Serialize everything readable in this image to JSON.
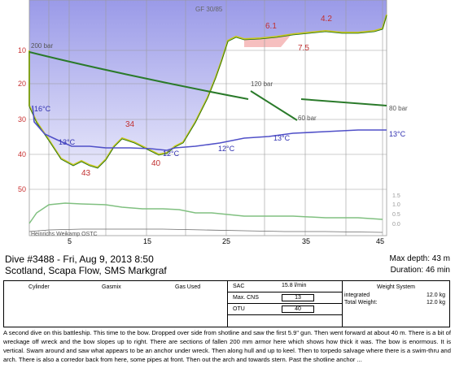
{
  "profile": {
    "watermark": "GF 30/85",
    "depth_ticks": [
      "10",
      "20",
      "30",
      "40",
      "50"
    ],
    "time_ticks": [
      "5",
      "15",
      "25",
      "35",
      "45"
    ],
    "pressure_labels": [
      "200 bar",
      "120 bar",
      "60 bar",
      "80 bar"
    ],
    "temperature_labels": [
      "16°C",
      "13°C",
      "12°C",
      "12°C",
      "13°C",
      "13°C"
    ],
    "depth_labels": [
      "43",
      "34",
      "40",
      "6.1",
      "4.2",
      "7.5"
    ],
    "right_scale": [
      "1.5",
      "1.0",
      "0.5",
      "0.0"
    ],
    "credit": "Heinrichs Weikamp OSTC",
    "colors": {
      "profile_fill": "#b8b8ee",
      "profile_line": "#c8c820",
      "tank": "#2a7a2a",
      "temp": "#5050c8",
      "ceiling": "#f4b0b0",
      "ppo2": "#80c080"
    }
  },
  "header": {
    "title": "Dive #3488 - Fri, Aug 9, 2013   8:50",
    "location": "Scotland, Scapa Flow, SMS Markgraf",
    "max_depth": "Max depth: 43 m",
    "duration": "Duration: 46 min"
  },
  "info": {
    "cylinder_label": "Cylinder",
    "gasmix_label": "Gasmix",
    "gas_used_label": "Gas Used",
    "sac_label": "SAC",
    "sac_value": "15.8 l/min",
    "cns_label": "Max. CNS",
    "cns_value": "13",
    "otu_label": "OTU",
    "otu_value": "40",
    "weight_title": "Weight System",
    "integrated_label": "integrated",
    "integrated_value": "12.0 kg",
    "total_label": "Total Weight:",
    "total_value": "12.0 kg"
  },
  "notes": "A second dive on this battleship. This time to the bow. Dropped over side from shotline and saw the first 5.9\" gun. Then went forward at about 40 m. There is a bit of wreckage off wreck and the bow slopes up to right. There are sections of fallen 200 mm armor here which shows how thick it was. The bow is enormous. It is vertical. Swam around and saw what appears to be an anchor under wreck. Then along hull and up to keel. Then to torpedo salvage where there is a swim-thru and arch. There is also a corredor back from here, some pipes at front. Then out the arch and towards stern. Past the shotline anchor ..."
}
